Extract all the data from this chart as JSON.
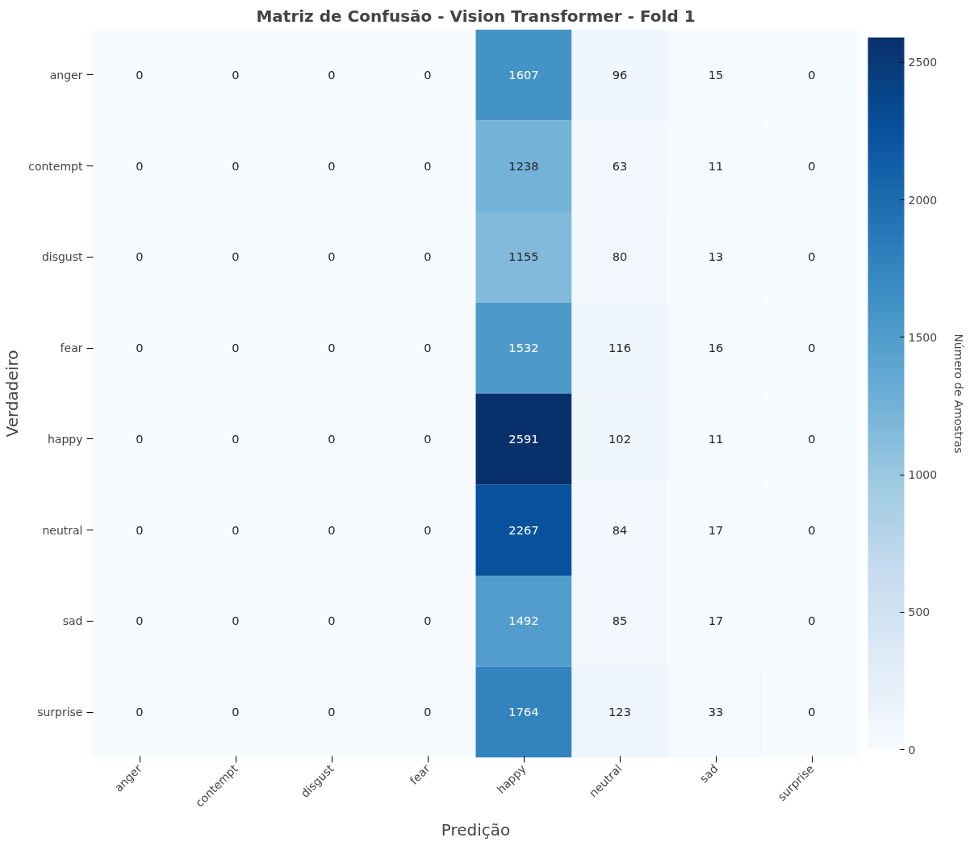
{
  "chart_data": {
    "type": "heatmap",
    "title": "Matriz de Confusão - Vision Transformer - Fold 1",
    "xlabel": "Predição",
    "ylabel": "Verdadeiro",
    "clabel": "Número de Amostras",
    "categories": [
      "anger",
      "contempt",
      "disgust",
      "fear",
      "happy",
      "neutral",
      "sad",
      "surprise"
    ],
    "y_categories": [
      "anger",
      "contempt",
      "disgust",
      "fear",
      "happy",
      "neutral",
      "sad",
      "surprise"
    ],
    "cells": [
      [
        0,
        0,
        0,
        0,
        1607,
        96,
        15,
        0
      ],
      [
        0,
        0,
        0,
        0,
        1238,
        63,
        11,
        0
      ],
      [
        0,
        0,
        0,
        0,
        1155,
        80,
        13,
        0
      ],
      [
        0,
        0,
        0,
        0,
        1532,
        116,
        16,
        0
      ],
      [
        0,
        0,
        0,
        0,
        2591,
        102,
        11,
        0
      ],
      [
        0,
        0,
        0,
        0,
        2267,
        84,
        17,
        0
      ],
      [
        0,
        0,
        0,
        0,
        1492,
        85,
        17,
        0
      ],
      [
        0,
        0,
        0,
        0,
        1764,
        123,
        33,
        0
      ]
    ],
    "clim": [
      0,
      2591
    ],
    "cticks": [
      0,
      500,
      1000,
      1500,
      2000,
      2500
    ],
    "data_labels": true
  }
}
